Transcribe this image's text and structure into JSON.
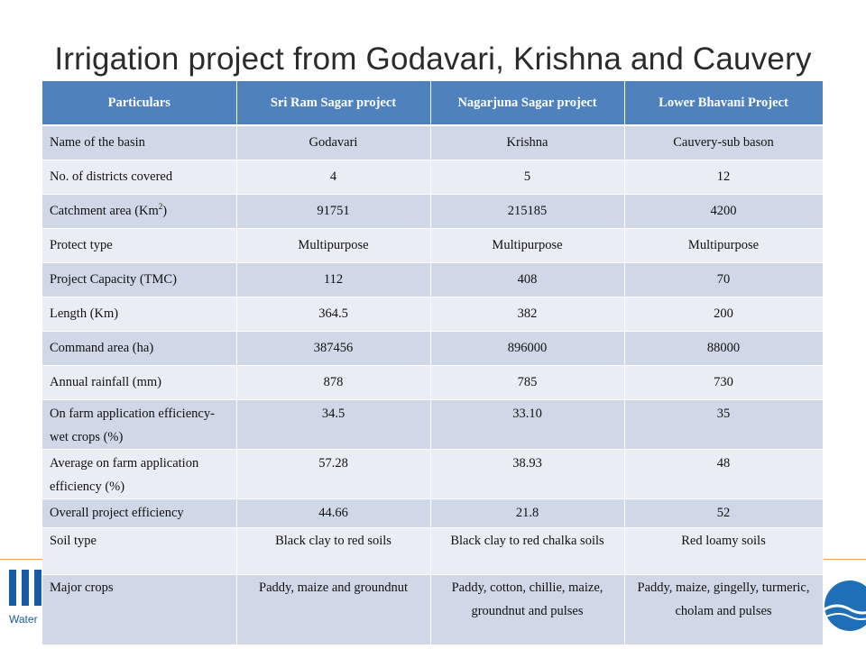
{
  "title": "Irrigation project from Godavari, Krishna and Cauvery",
  "colors": {
    "header_bg": "#4f81bd",
    "row_odd": "#d0d8e8",
    "row_even": "#e9edf4"
  },
  "logo_left_text": "Water",
  "table": {
    "headers": [
      "Particulars",
      "Sri Ram Sagar project",
      "Nagarjuna Sagar project",
      "Lower Bhavani Project"
    ],
    "rows": [
      [
        "Name of the basin",
        "Godavari",
        "Krishna",
        "Cauvery-sub bason"
      ],
      [
        "No. of districts covered",
        "4",
        "5",
        "12"
      ],
      [
        "Catchment area (Km",
        "91751",
        "215185",
        "4200"
      ],
      [
        "Protect type",
        "Multipurpose",
        "Multipurpose",
        "Multipurpose"
      ],
      [
        "Project Capacity (TMC)",
        "112",
        "408",
        "70"
      ],
      [
        "Length (Km)",
        "364.5",
        "382",
        "200"
      ],
      [
        "Command area (ha)",
        "387456",
        "896000",
        "88000"
      ],
      [
        "Annual rainfall (mm)",
        "878",
        "785",
        "730"
      ],
      [
        "On farm application efficiency-wet crops (%)",
        "34.5",
        "33.10",
        "35"
      ],
      [
        "Average on farm application efficiency (%)",
        "57.28",
        "38.93",
        "48"
      ],
      [
        "Overall project efficiency",
        "44.66",
        "21.8",
        "52"
      ],
      [
        "Soil type",
        "Black clay to red soils",
        "Black clay to red chalka soils",
        "Red loamy soils"
      ],
      [
        "Major crops",
        "Paddy, maize and groundnut",
        "Paddy, cotton, chillie, maize, groundnut and pulses",
        "Paddy, maize, gingelly, turmeric, cholam and pulses"
      ]
    ],
    "catchment_superscript": "2",
    "catchment_suffix": ")"
  }
}
